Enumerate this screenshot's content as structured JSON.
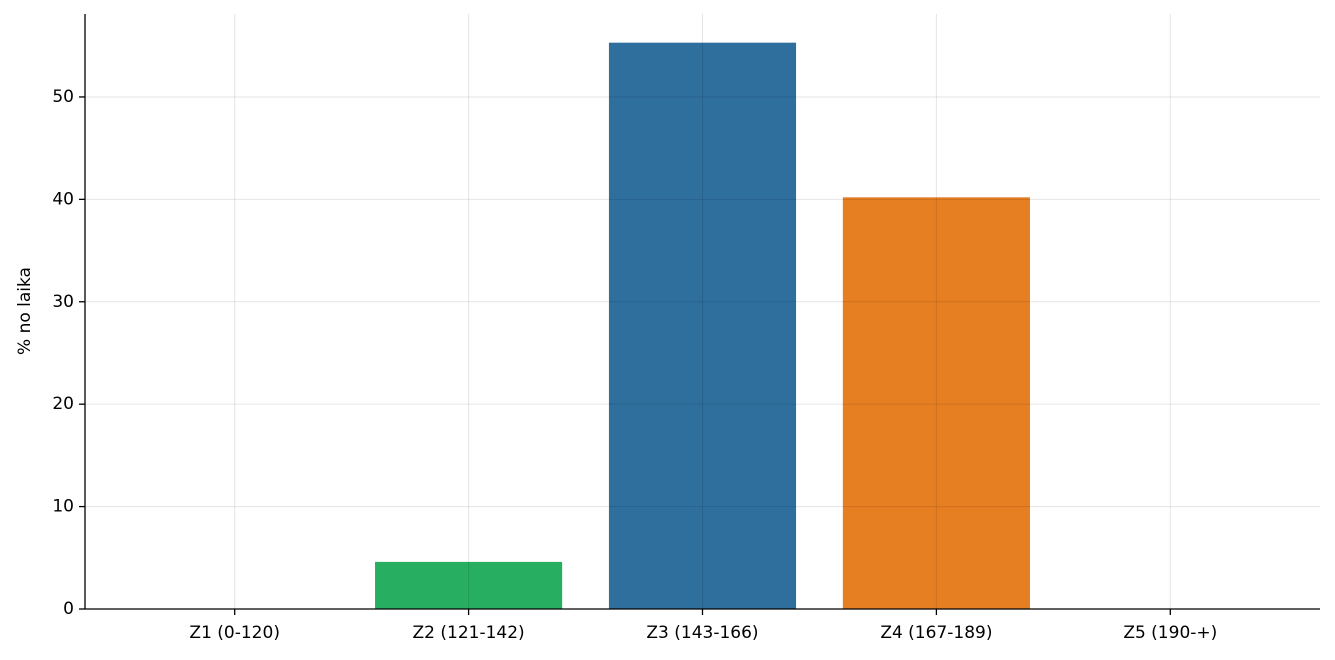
{
  "chart_data": {
    "type": "bar",
    "y_label": "% no laika",
    "categories": [
      "Z1 (0-120)",
      "Z2 (121-142)",
      "Z3 (143-166)",
      "Z4 (167-189)",
      "Z5 (190-+)"
    ],
    "values": [
      0,
      4.6,
      55.3,
      40.2,
      0
    ],
    "colors": [
      "#95a5a6",
      "#27ae60",
      "#2e6f9e",
      "#e67e22",
      "#e74c3c"
    ],
    "ylim": [
      0,
      58.1
    ],
    "yticks": [
      0,
      10,
      20,
      30,
      40,
      50
    ],
    "grid": true
  }
}
